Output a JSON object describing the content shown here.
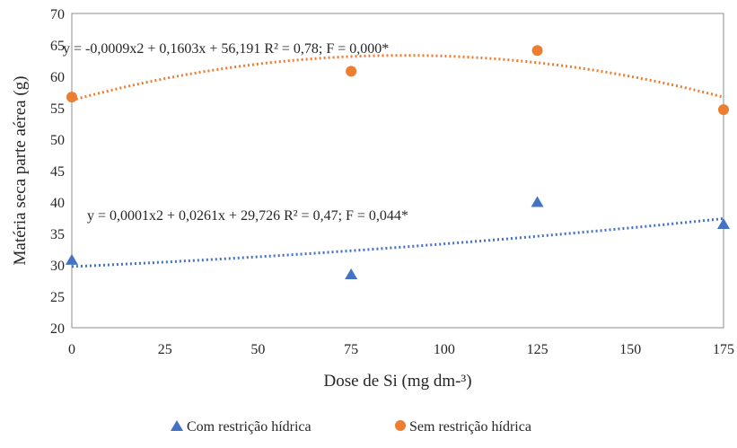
{
  "chart_data": {
    "type": "scatter",
    "xlabel": "Dose de Si (mg dm-³)",
    "ylabel": "Matéria seca parte aérea (g)",
    "xlim": [
      0,
      175
    ],
    "ylim": [
      20,
      70
    ],
    "xticks": [
      0,
      25,
      50,
      75,
      100,
      125,
      150,
      175
    ],
    "yticks": [
      20,
      25,
      30,
      35,
      40,
      45,
      50,
      55,
      60,
      65,
      70
    ],
    "grid": false,
    "legend_position": "bottom",
    "series": [
      {
        "name": "Com restrição hídrica",
        "marker": "triangle",
        "color": "#4472C4",
        "x": [
          0,
          75,
          125,
          175
        ],
        "y": [
          30.8,
          28.5,
          40.0,
          36.5
        ],
        "trendline": {
          "type": "polynomial",
          "coefficients": [
            0.0001,
            0.0261,
            29.726
          ]
        },
        "equation": "y = 0,0001x2  + 0,0261x + 29,726  R² = 0,47;  F = 0,044*"
      },
      {
        "name": "Sem restrição hídrica",
        "marker": "circle",
        "color": "#ED7D31",
        "x": [
          0,
          75,
          125,
          175
        ],
        "y": [
          56.7,
          60.8,
          64.1,
          54.7
        ],
        "trendline": {
          "type": "polynomial",
          "coefficients": [
            -0.0009,
            0.1603,
            56.191
          ]
        },
        "equation": "y = -0,0009x2  + 0,1603x + 56,191  R² = 0,78;  F = 0,000*"
      }
    ]
  }
}
